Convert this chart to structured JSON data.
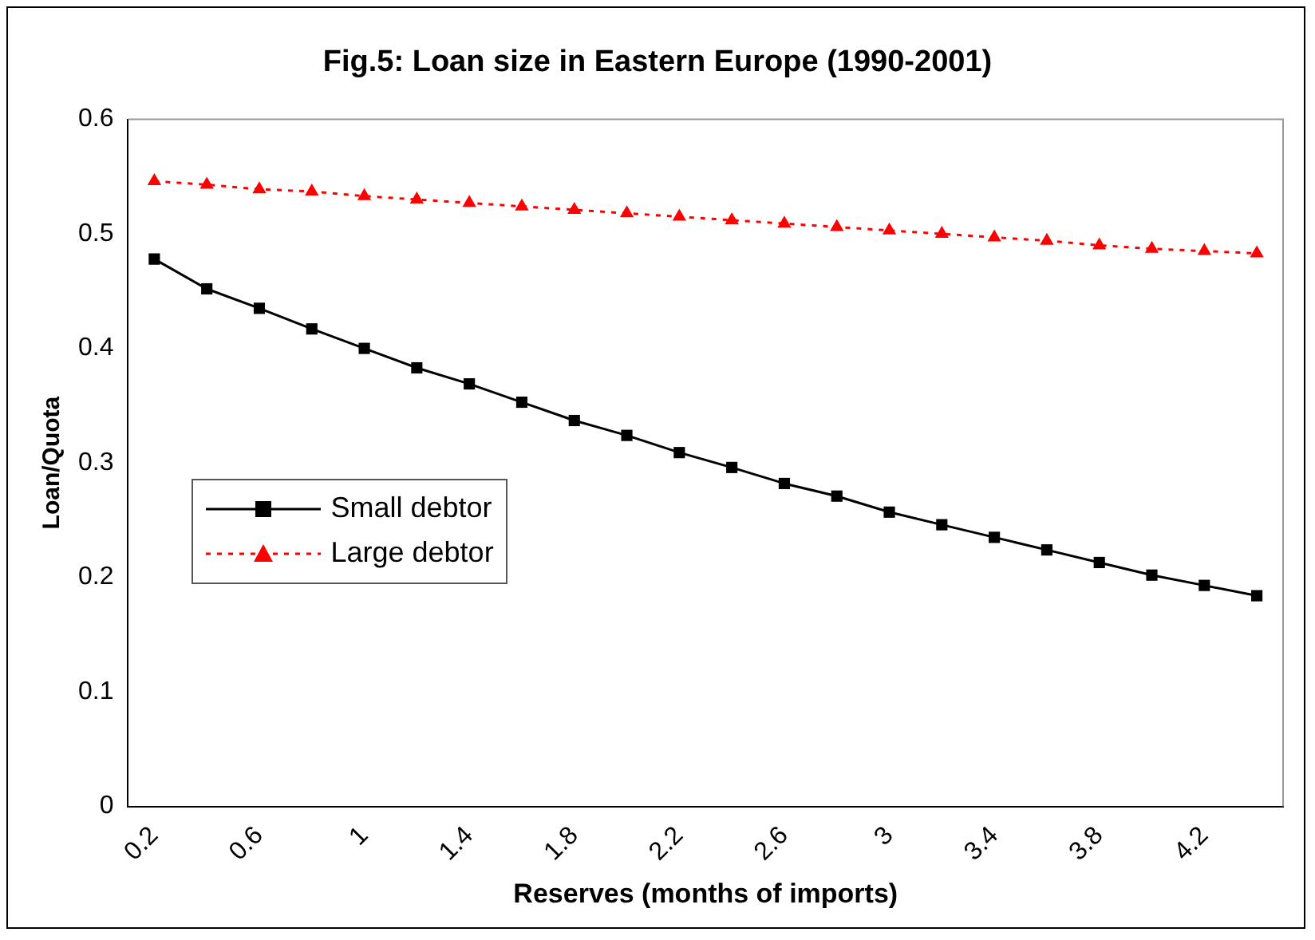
{
  "chart_data": {
    "type": "line",
    "title": "Fig.5: Loan size in Eastern Europe (1990-2001)",
    "xlabel": "Reserves (months of imports)",
    "ylabel": "Loan/Quota",
    "categories": [
      "0.2",
      null,
      "0.6",
      null,
      "1",
      null,
      "1.4",
      null,
      "1.8",
      null,
      "2.2",
      null,
      "2.6",
      null,
      "3",
      null,
      "3.4",
      null,
      "3.8",
      null,
      "4.2",
      null
    ],
    "series": [
      {
        "name": "Small debtor",
        "color": "#000000",
        "marker": "square",
        "line_style": "solid",
        "values": [
          0.478,
          0.452,
          0.435,
          0.417,
          0.4,
          0.383,
          0.369,
          0.353,
          0.337,
          0.324,
          0.309,
          0.296,
          0.282,
          0.271,
          0.257,
          0.246,
          0.235,
          0.224,
          0.213,
          0.202,
          0.193,
          0.184
        ]
      },
      {
        "name": "Large debtor",
        "color": "#ff0000",
        "marker": "triangle",
        "line_style": "dotted",
        "values": [
          0.546,
          0.543,
          0.539,
          0.537,
          0.533,
          0.53,
          0.527,
          0.524,
          0.521,
          0.518,
          0.515,
          0.512,
          0.509,
          0.506,
          0.503,
          0.5,
          0.497,
          0.494,
          0.49,
          0.487,
          0.485,
          0.483
        ]
      }
    ],
    "ylim": [
      0,
      0.6
    ],
    "yticks": [
      0,
      0.1,
      0.2,
      0.3,
      0.4,
      0.5,
      0.6
    ],
    "grid": false,
    "legend": "left"
  }
}
